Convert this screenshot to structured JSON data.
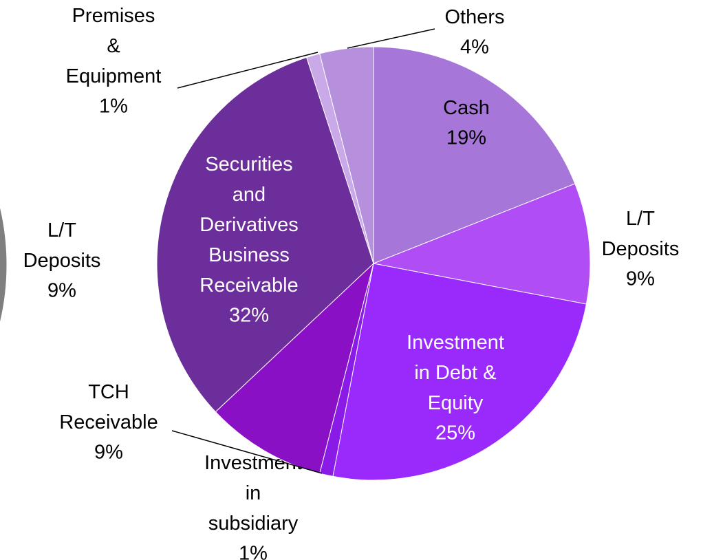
{
  "chart_data": [
    {
      "type": "pie",
      "categories": [
        "Cash",
        "L/T\nDeposits",
        "Investment\nin Debt &\nEquity",
        "Investment\nin\nsubsidiary",
        "TCH\nReceivable",
        "Securities\nand\nDerivatives\nBusiness\nReceivable",
        "Premises\n&\nEquipment",
        "Others"
      ],
      "values": [
        19,
        9,
        25,
        1,
        9,
        32,
        1,
        4
      ],
      "value_labels": [
        "19%",
        "9%",
        "25%",
        "1%",
        "9%",
        "32%",
        "1%",
        "4%"
      ],
      "colors": [
        "#a677d8",
        "#b04df5",
        "#9a2afc",
        "#8a1ae6",
        "#8a10c6",
        "#6b2e9a",
        "#c9a9e8",
        "#b690dc"
      ]
    },
    {
      "type": "pie",
      "categories": [
        "L/T\nDeposits"
      ],
      "values": [
        9
      ],
      "value_labels": [
        "9%"
      ],
      "colors": [
        "#7f7f7f"
      ]
    }
  ]
}
